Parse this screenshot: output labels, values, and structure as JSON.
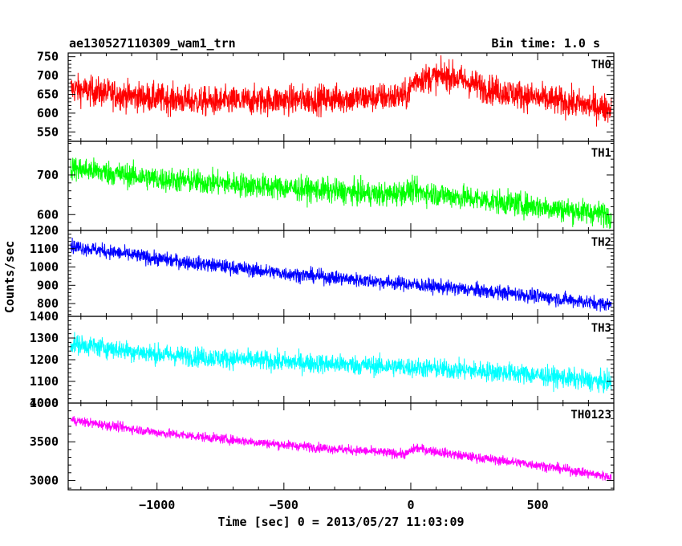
{
  "title_left": "ae130527110309_wam1_trn",
  "title_right": "Bin time: 1.0 s",
  "ylabel": "Counts/sec",
  "xlabel": "Time [sec] 0 = 2013/05/27 11:03:09",
  "chart_data": [
    {
      "type": "line",
      "series": [
        {
          "name": "TH0",
          "color": "#ff0000"
        }
      ],
      "label": "TH0",
      "ylim": [
        525,
        760
      ],
      "yticks": [
        550,
        600,
        650,
        700,
        750
      ],
      "xlim": [
        -1350,
        800
      ],
      "approx_points": [
        [
          -1340,
          665
        ],
        [
          -1100,
          645
        ],
        [
          -800,
          630
        ],
        [
          -500,
          635
        ],
        [
          -200,
          640
        ],
        [
          -20,
          645
        ],
        [
          20,
          690
        ],
        [
          150,
          700
        ],
        [
          300,
          665
        ],
        [
          500,
          640
        ],
        [
          780,
          612
        ]
      ],
      "noise": 38
    },
    {
      "type": "line",
      "series": [
        {
          "name": "TH1",
          "color": "#00ff00"
        }
      ],
      "label": "TH1",
      "ylim": [
        560,
        785
      ],
      "yticks": [
        600,
        700
      ],
      "xlim": [
        -1350,
        800
      ],
      "approx_points": [
        [
          -1340,
          718
        ],
        [
          -1000,
          690
        ],
        [
          -500,
          668
        ],
        [
          -100,
          650
        ],
        [
          0,
          660
        ],
        [
          100,
          652
        ],
        [
          400,
          628
        ],
        [
          780,
          600
        ]
      ],
      "noise": 30
    },
    {
      "type": "line",
      "series": [
        {
          "name": "TH2",
          "color": "#0000ff"
        }
      ],
      "label": "TH2",
      "ylim": [
        730,
        1200
      ],
      "yticks": [
        800,
        900,
        1000,
        1100,
        1200
      ],
      "xlim": [
        -1350,
        800
      ],
      "approx_points": [
        [
          -1340,
          1115
        ],
        [
          -1000,
          1045
        ],
        [
          -500,
          965
        ],
        [
          0,
          905
        ],
        [
          400,
          855
        ],
        [
          780,
          795
        ]
      ],
      "noise": 38
    },
    {
      "type": "line",
      "series": [
        {
          "name": "TH3",
          "color": "#00ffff"
        }
      ],
      "label": "TH3",
      "ylim": [
        1000,
        1400
      ],
      "yticks": [
        1000,
        1100,
        1200,
        1300,
        1400
      ],
      "xlim": [
        -1350,
        800
      ],
      "approx_points": [
        [
          -1340,
          1275
        ],
        [
          -1000,
          1225
        ],
        [
          -500,
          1190
        ],
        [
          0,
          1165
        ],
        [
          400,
          1140
        ],
        [
          780,
          1095
        ]
      ],
      "noise": 45
    },
    {
      "type": "line",
      "series": [
        {
          "name": "TH0123",
          "color": "#ff00ff"
        }
      ],
      "label": "TH0123",
      "ylim": [
        2880,
        4000
      ],
      "yticks": [
        3000,
        3500,
        4000
      ],
      "xlim": [
        -1350,
        800
      ],
      "xticks": [
        -1000,
        -500,
        0,
        500
      ],
      "approx_points": [
        [
          -1340,
          3780
        ],
        [
          -1000,
          3620
        ],
        [
          -500,
          3460
        ],
        [
          -20,
          3340
        ],
        [
          20,
          3420
        ],
        [
          200,
          3320
        ],
        [
          500,
          3200
        ],
        [
          780,
          3050
        ]
      ],
      "noise": 60
    }
  ]
}
